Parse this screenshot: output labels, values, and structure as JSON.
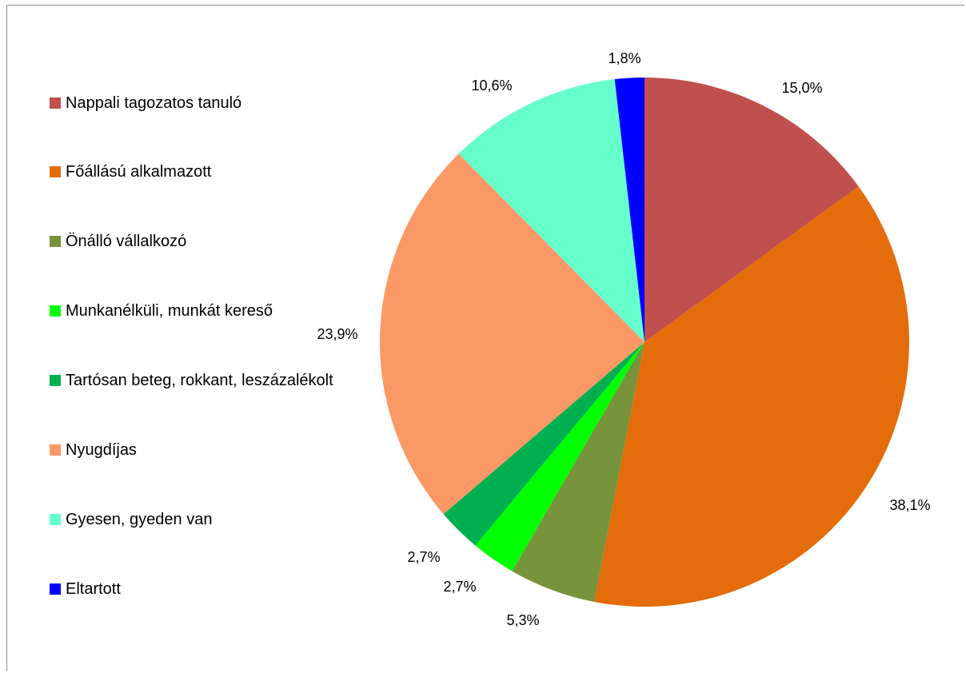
{
  "chart_data": {
    "type": "pie",
    "categories": [
      "Nappali tagozatos tanuló",
      "Főállású alkalmazott",
      "Önálló vállalkozó",
      "Munkanélküli, munkát kereső",
      "Tartósan beteg, rokkant, leszázalékolt",
      "Nyugdíjas",
      "Gyesen, gyeden van",
      "Eltartott"
    ],
    "values": [
      15.0,
      38.1,
      5.3,
      2.7,
      2.7,
      23.9,
      10.6,
      1.8
    ],
    "data_labels": [
      "15,0%",
      "38,1%",
      "5,3%",
      "2,7%",
      "2,7%",
      "23,9%",
      "10,6%",
      "1,8%"
    ],
    "colors": [
      "#c0504d",
      "#e46c0a",
      "#77933c",
      "#00ff00",
      "#00b050",
      "#fb9966",
      "#66ffcc",
      "#0000ff"
    ],
    "legend_position": "left",
    "start_angle_deg": 0,
    "direction": "clockwise"
  }
}
